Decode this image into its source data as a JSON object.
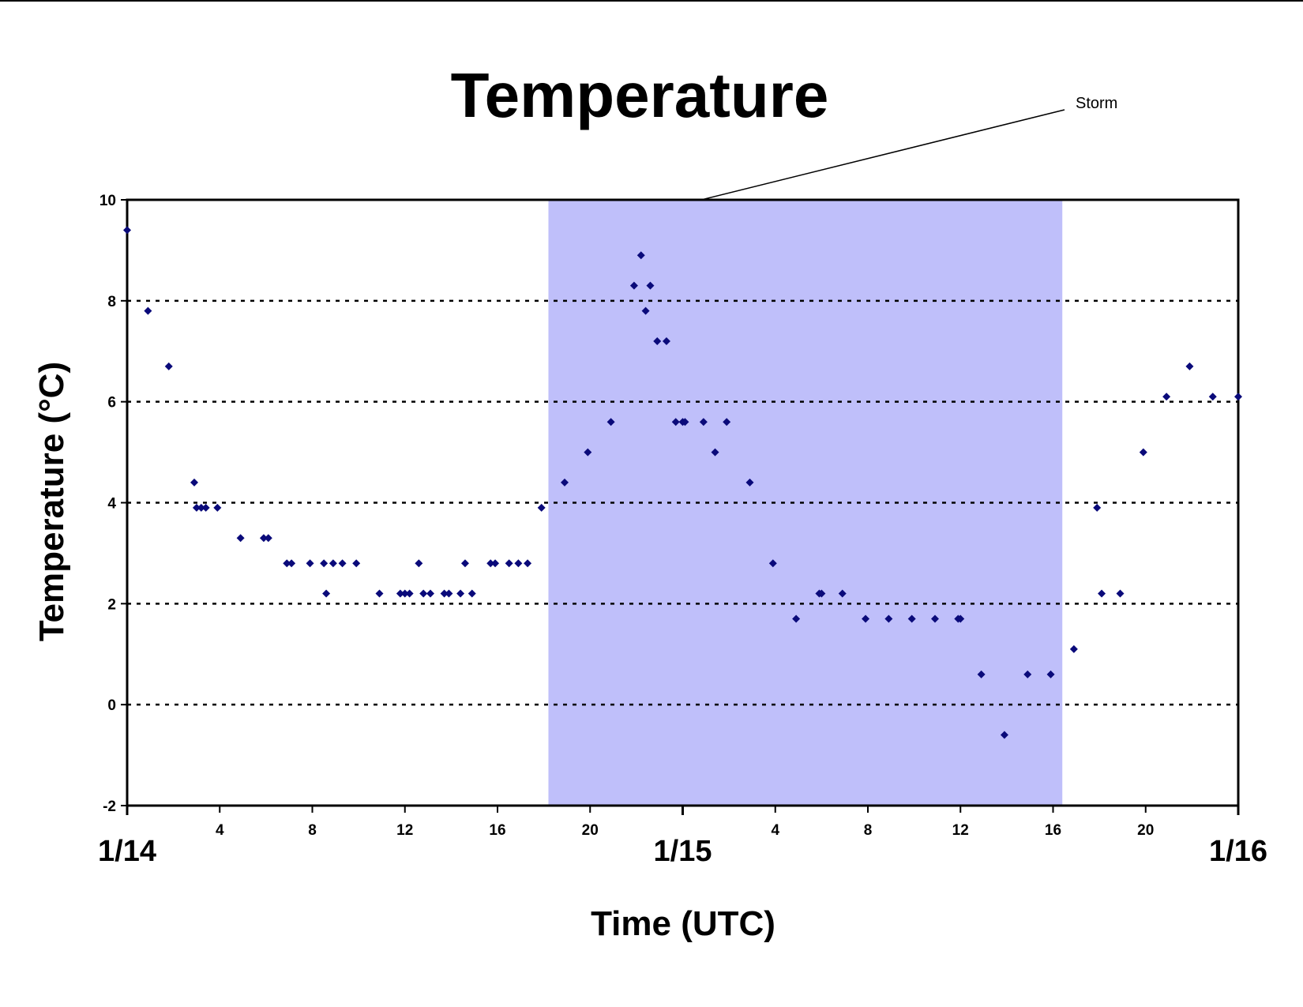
{
  "chart_data": {
    "type": "scatter",
    "title": "Temperature",
    "xlabel": "Time (UTC)",
    "ylabel": "Temperature (°C)",
    "ylim": [
      -2,
      10
    ],
    "yticks": [
      "-2",
      "0",
      "2",
      "4",
      "6",
      "8",
      "10"
    ],
    "xlim_hours": [
      0,
      48
    ],
    "hour_tick_labels": [
      {
        "hour": 4,
        "label": "4"
      },
      {
        "hour": 8,
        "label": "8"
      },
      {
        "hour": 12,
        "label": "12"
      },
      {
        "hour": 16,
        "label": "16"
      },
      {
        "hour": 20,
        "label": "20"
      },
      {
        "hour": 28,
        "label": "4"
      },
      {
        "hour": 32,
        "label": "8"
      },
      {
        "hour": 36,
        "label": "12"
      },
      {
        "hour": 40,
        "label": "16"
      },
      {
        "hour": 44,
        "label": "20"
      }
    ],
    "day_labels": [
      {
        "hour": 0,
        "label": "1/14"
      },
      {
        "hour": 24,
        "label": "1/15"
      },
      {
        "hour": 48,
        "label": "1/16"
      }
    ],
    "grid": "horizontal dotted",
    "marker_color": "#0a0a7a",
    "highlight": {
      "label": "Storm",
      "start_hour": 18.2,
      "end_hour": 40.4,
      "color": "#bfbffa"
    },
    "x_unit": "hours since 1/14 00:00 UTC",
    "x": [
      0,
      0.9,
      1.8,
      2.9,
      3.0,
      3.2,
      3.4,
      3.9,
      4.9,
      5.9,
      6.1,
      6.9,
      7.1,
      7.9,
      8.5,
      8.6,
      8.9,
      9.3,
      9.9,
      10.9,
      11.8,
      12.0,
      12.2,
      12.6,
      12.8,
      13.1,
      13.7,
      13.9,
      14.4,
      14.6,
      14.9,
      15.7,
      15.9,
      16.5,
      16.9,
      17.3,
      17.9,
      18.9,
      19.9,
      20.9,
      21.9,
      22.2,
      22.4,
      22.6,
      22.9,
      23.3,
      23.7,
      24.0,
      24.1,
      24.9,
      25.4,
      25.9,
      26.9,
      27.9,
      28.9,
      29.9,
      30.0,
      30.9,
      31.9,
      32.9,
      33.9,
      34.9,
      35.9,
      36.0,
      36.9,
      37.9,
      38.9,
      39.9,
      40.9,
      41.9,
      42.1,
      42.9,
      43.9,
      44.9,
      45.9,
      46.9,
      48.0
    ],
    "y": [
      9.4,
      7.8,
      6.7,
      4.4,
      3.9,
      3.9,
      3.9,
      3.9,
      3.3,
      3.3,
      3.3,
      2.8,
      2.8,
      2.8,
      2.8,
      2.2,
      2.8,
      2.8,
      2.8,
      2.2,
      2.2,
      2.2,
      2.2,
      2.8,
      2.2,
      2.2,
      2.2,
      2.2,
      2.2,
      2.8,
      2.2,
      2.8,
      2.8,
      2.8,
      2.8,
      2.8,
      3.9,
      4.4,
      5.0,
      5.6,
      8.3,
      8.9,
      7.8,
      8.3,
      7.2,
      7.2,
      5.6,
      5.6,
      5.6,
      5.6,
      5.0,
      5.6,
      4.4,
      2.8,
      1.7,
      2.2,
      2.2,
      2.2,
      1.7,
      1.7,
      1.7,
      1.7,
      1.7,
      1.7,
      0.6,
      -0.6,
      0.6,
      0.6,
      1.1,
      3.9,
      2.2,
      2.2,
      5.0,
      6.1,
      6.7,
      6.1,
      6.1
    ]
  }
}
